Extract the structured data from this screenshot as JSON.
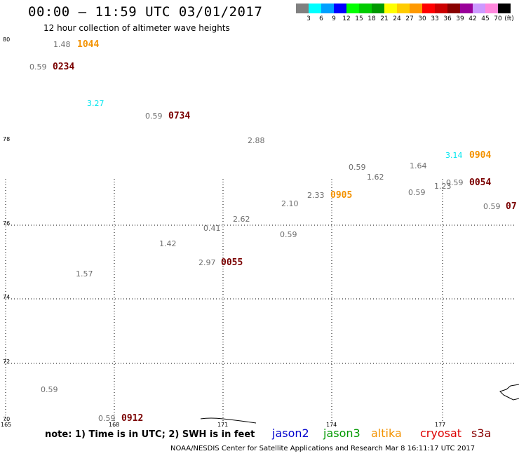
{
  "header": {
    "title": "00:00 — 11:59 UTC 03/01/2017",
    "subtitle": "12 hour collection of altimeter wave heights"
  },
  "legend": {
    "unit": "(ft)",
    "colors": [
      "#808080",
      "#00ffff",
      "#00a0ff",
      "#0000ff",
      "#00ff00",
      "#00cc00",
      "#009900",
      "#ffff00",
      "#ffcc00",
      "#ff9900",
      "#ff0000",
      "#cc0000",
      "#880000",
      "#990099",
      "#cc99ff",
      "#ff88dd",
      "#000000"
    ],
    "labels": [
      "3",
      "6",
      "9",
      "12",
      "15",
      "18",
      "21",
      "24",
      "27",
      "30",
      "33",
      "36",
      "39",
      "42",
      "45",
      "70"
    ]
  },
  "axes": {
    "y_labels": [
      "80",
      "78",
      "76",
      "74",
      "72",
      "70"
    ],
    "x_labels": [
      "165",
      "168",
      "171",
      "174",
      "177"
    ]
  },
  "observations": {
    "swh": [
      "1.48",
      "0.59",
      "3.27",
      "0.59",
      "2.88",
      "3.14",
      "0.59",
      "1.62",
      "1.64",
      "1.23",
      "0.59",
      "0.59",
      "2.33",
      "2.10",
      "0.59",
      "2.62",
      "0.41",
      "0.59",
      "1.42",
      "2.97",
      "1.57",
      "0.59",
      "0.59"
    ],
    "times": [
      "1044",
      "0234",
      "0734",
      "0904",
      "0054",
      "07",
      "0905",
      "0055",
      "0912"
    ]
  },
  "footer": {
    "note": "note:  1) Time is in UTC;  2) SWH is in feet",
    "satellites": [
      {
        "name": "jason2",
        "color": "#0000cc"
      },
      {
        "name": "jason3",
        "color": "#009900"
      },
      {
        "name": "altika",
        "color": "#f39200"
      },
      {
        "name": "cryosat",
        "color": "#dd0000"
      },
      {
        "name": "s3a",
        "color": "#880000"
      }
    ],
    "credit": "NOAA/NESDIS Center for Satellite Applications and Research    Mar  8 16:11:17 UTC 2017"
  }
}
